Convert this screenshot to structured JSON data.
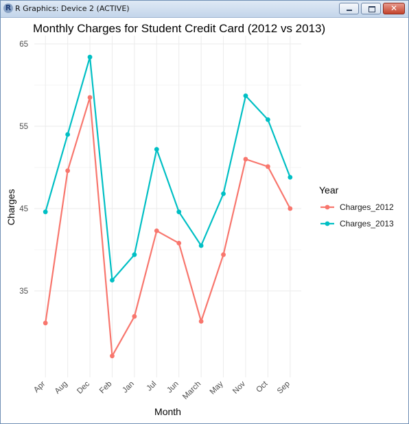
{
  "window": {
    "title": "R Graphics: Device 2 (ACTIVE)",
    "icon_letter": "R",
    "close_glyph": "✕"
  },
  "chart_data": {
    "type": "line",
    "title": "Monthly Charges for Student Credit Card (2012 vs 2013)",
    "xlabel": "Month",
    "ylabel": "Charges",
    "categories": [
      "Apr",
      "Aug",
      "Dec",
      "Feb",
      "Jan",
      "Jul",
      "Jun",
      "March",
      "May",
      "Nov",
      "Oct",
      "Sep"
    ],
    "ylim": [
      24.5,
      66
    ],
    "y_ticks": [
      35,
      45,
      55,
      65
    ],
    "grid": true,
    "legend": {
      "title": "Year",
      "position": "right"
    },
    "series": [
      {
        "name": "Charges_2012",
        "color": "#F8766D",
        "values": [
          31.1,
          49.6,
          58.5,
          27.1,
          31.9,
          42.3,
          40.8,
          31.3,
          39.4,
          51.0,
          50.1,
          45.0
        ]
      },
      {
        "name": "Charges_2013",
        "color": "#00BFC4",
        "values": [
          44.6,
          54.0,
          63.4,
          36.3,
          39.4,
          52.2,
          44.6,
          40.5,
          46.8,
          58.7,
          55.8,
          48.8
        ]
      }
    ]
  }
}
